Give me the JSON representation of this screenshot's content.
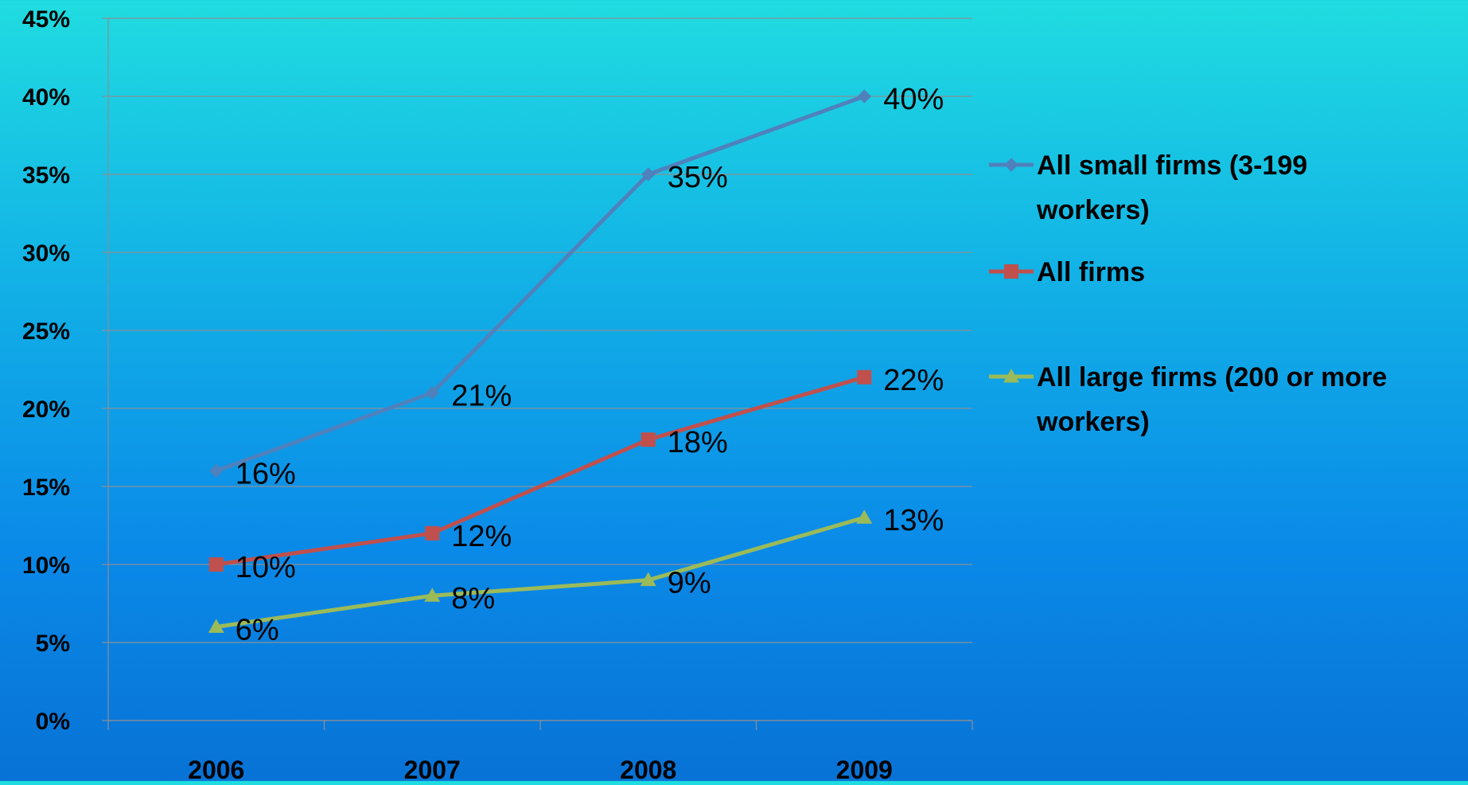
{
  "chart_data": {
    "type": "line",
    "title": "",
    "xlabel": "",
    "ylabel": "",
    "categories": [
      "2006",
      "2007",
      "2008",
      "2009"
    ],
    "ylim": [
      0,
      45
    ],
    "yticks": [
      0,
      5,
      10,
      15,
      20,
      25,
      30,
      35,
      40,
      45
    ],
    "ytick_labels": [
      "0%",
      "5%",
      "10%",
      "15%",
      "20%",
      "25%",
      "30%",
      "35%",
      "40%",
      "45%"
    ],
    "grid": true,
    "legend_position": "right",
    "series": [
      {
        "name": "All small firms (3-199 workers)",
        "legend_lines": [
          "All small firms (3-199",
          "workers)"
        ],
        "values": [
          16,
          21,
          35,
          40
        ],
        "labels": [
          "16%",
          "21%",
          "35%",
          "40%"
        ],
        "color": "#4f81bd",
        "marker": "diamond"
      },
      {
        "name": "All firms",
        "legend_lines": [
          "All firms"
        ],
        "values": [
          10,
          12,
          18,
          22
        ],
        "labels": [
          "10%",
          "12%",
          "18%",
          "22%"
        ],
        "color": "#c0504d",
        "marker": "square"
      },
      {
        "name": "All large firms (200 or more workers)",
        "legend_lines": [
          "All large firms (200 or more",
          "workers)"
        ],
        "values": [
          6,
          8,
          9,
          13
        ],
        "labels": [
          "6%",
          "8%",
          "9%",
          "13%"
        ],
        "color": "#9bbb59",
        "marker": "triangle"
      }
    ]
  }
}
